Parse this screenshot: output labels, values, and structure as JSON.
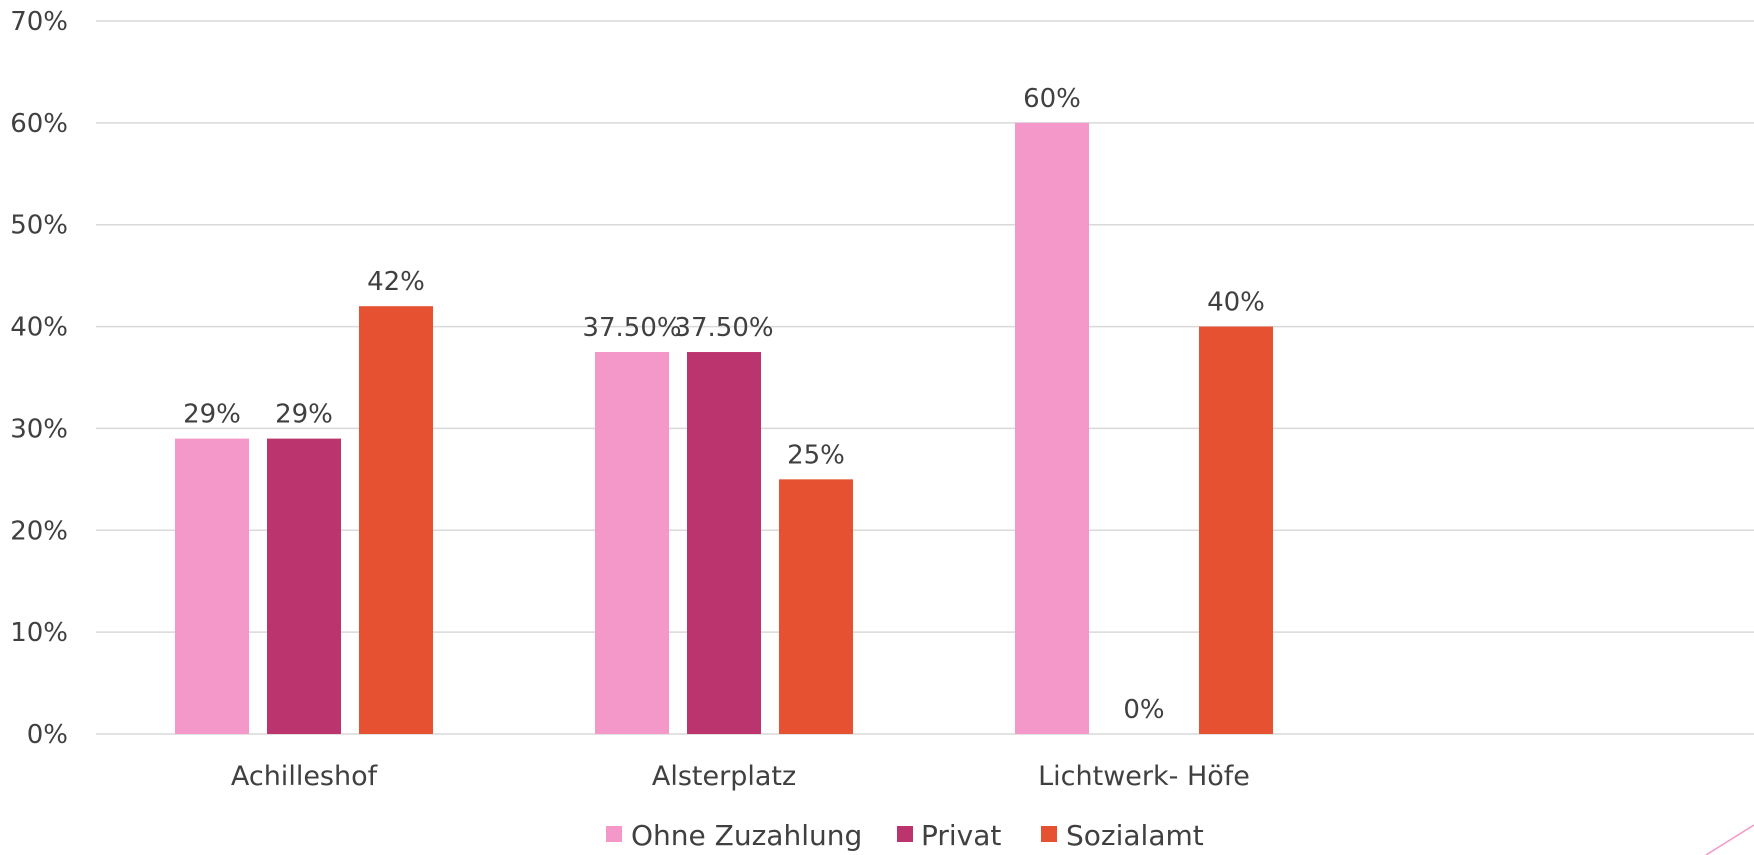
{
  "chart_data": {
    "type": "bar",
    "categories": [
      "Achilleshof",
      "Alsterplatz",
      "Lichtwerk- Höfe"
    ],
    "series": [
      {
        "name": "Ohne Zuzahlung",
        "color": "#f497c9",
        "values": [
          0.29,
          0.375,
          0.6
        ],
        "labels": [
          "29%",
          "37.50%",
          "60%"
        ]
      },
      {
        "name": "Privat",
        "color": "#bb346e",
        "values": [
          0.29,
          0.375,
          0.0
        ],
        "labels": [
          "29%",
          "37.50%",
          "0%"
        ]
      },
      {
        "name": "Sozialamt",
        "color": "#e55131",
        "values": [
          0.42,
          0.25,
          0.4
        ],
        "labels": [
          "42%",
          "25%",
          "40%"
        ]
      }
    ],
    "y_ticks": [
      0,
      0.1,
      0.2,
      0.3,
      0.4,
      0.5,
      0.6,
      0.7
    ],
    "y_tick_labels": [
      "0%",
      "10%",
      "20%",
      "30%",
      "40%",
      "50%",
      "60%",
      "70%"
    ],
    "ylim": [
      0,
      0.7
    ],
    "grid": true,
    "legend_position": "bottom"
  }
}
